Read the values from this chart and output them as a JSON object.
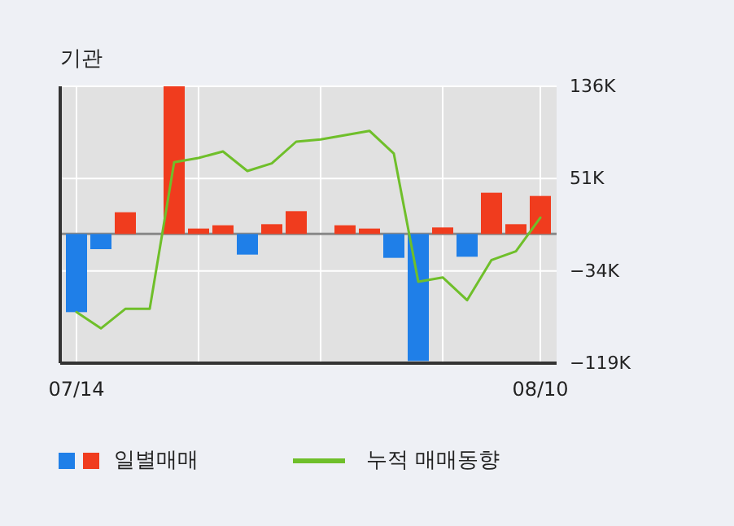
{
  "chart_data": {
    "type": "bar",
    "title": "기관",
    "categories": [
      "07/14",
      null,
      null,
      null,
      null,
      null,
      null,
      null,
      null,
      null,
      null,
      null,
      null,
      null,
      null,
      null,
      null,
      null,
      null,
      "08/10"
    ],
    "series": [
      {
        "name": "일별매매",
        "colors": [
          "#1f7fe8",
          "#1f7fe8",
          "#f03c1e",
          "#f03c1e",
          "#f03c1e",
          "#f03c1e",
          "#f03c1e",
          "#1f7fe8",
          "#f03c1e",
          "#f03c1e",
          "#f03c1e",
          "#f03c1e",
          "#f03c1e",
          "#1f7fe8",
          "#1f7fe8",
          "#f03c1e",
          "#1f7fe8",
          "#f03c1e",
          "#f03c1e",
          "#f03c1e"
        ],
        "values": [
          -72000,
          -14000,
          20000,
          0,
          136000,
          5000,
          8000,
          -19000,
          9000,
          21000,
          0,
          8000,
          5000,
          -22000,
          -117000,
          6000,
          -21000,
          38000,
          9000,
          35000
        ]
      },
      {
        "type": "line",
        "name": "누적 매매동향",
        "color": "#6fbf2a",
        "values": [
          -72000,
          -87000,
          -69000,
          -69000,
          66000,
          70000,
          76000,
          58000,
          65000,
          85000,
          87000,
          91000,
          95000,
          74000,
          -44000,
          -40000,
          -61000,
          -24000,
          -16000,
          15000
        ]
      }
    ],
    "ylim": [
      -119000,
      136000
    ],
    "yticks": [
      {
        "value": -119000,
        "label": "−119K"
      },
      {
        "value": -34000,
        "label": "−34K"
      },
      {
        "value": 51000,
        "label": "51K"
      },
      {
        "value": 136000,
        "label": "136K"
      }
    ],
    "grid": true,
    "legend": "bottom left"
  }
}
